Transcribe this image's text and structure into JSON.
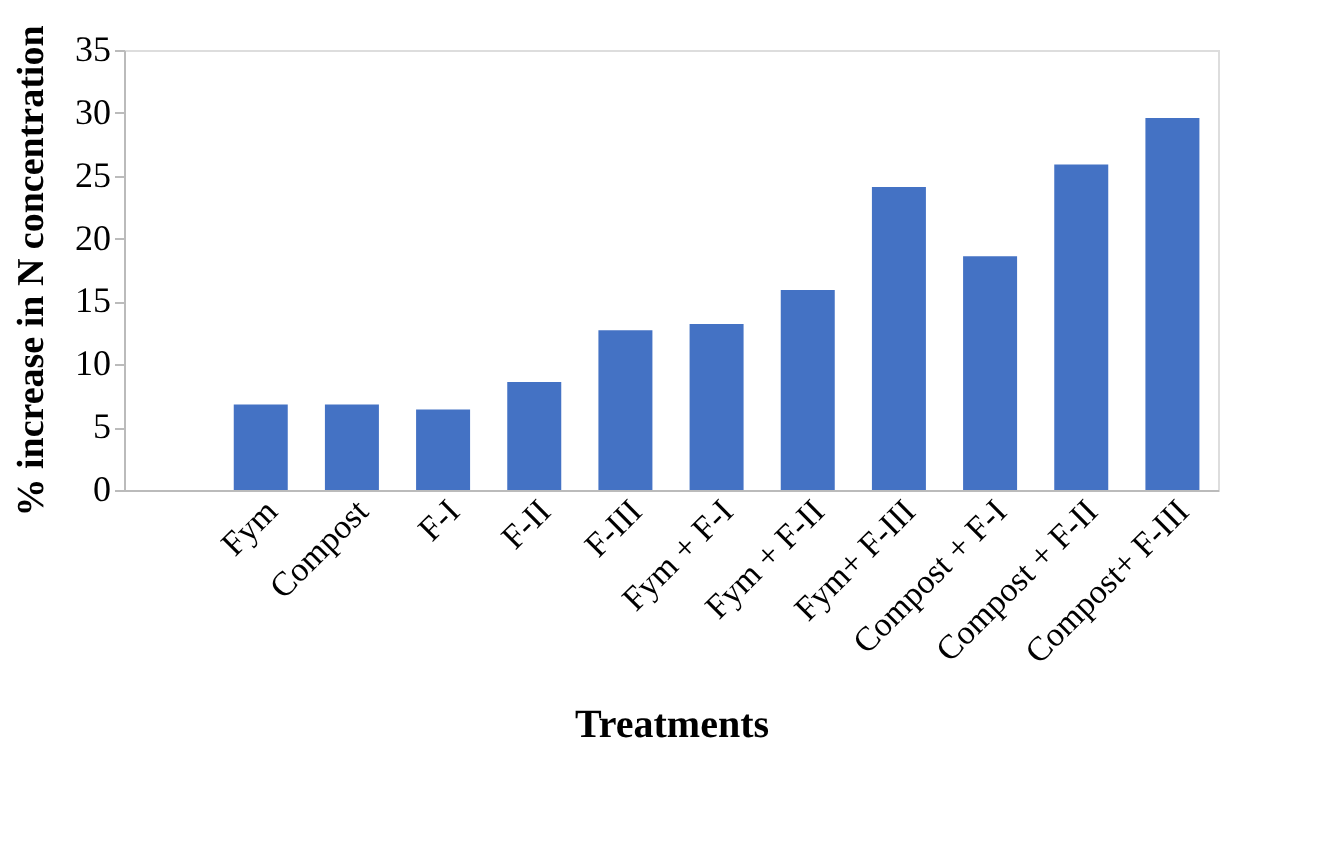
{
  "chart_data": {
    "type": "bar",
    "xlabel": "Treatments",
    "ylabel": "% increase in N concentration",
    "categories": [
      null,
      "Fym",
      "Compost",
      "F-I",
      "F-II",
      "F-III",
      "Fym + F-I",
      "Fym + F-II",
      "Fym+ F-III",
      "Compost + F-I",
      "Compost + F-II",
      "Compost+ F-III"
    ],
    "values": [
      null,
      6.8,
      6.8,
      6.4,
      8.6,
      12.7,
      13.2,
      15.9,
      24.1,
      18.6,
      25.9,
      29.6
    ],
    "color": "#4472c4",
    "ylim": [
      0,
      35
    ],
    "yticks": [
      0,
      5,
      10,
      15,
      20,
      25,
      30,
      35
    ],
    "grid": false
  }
}
